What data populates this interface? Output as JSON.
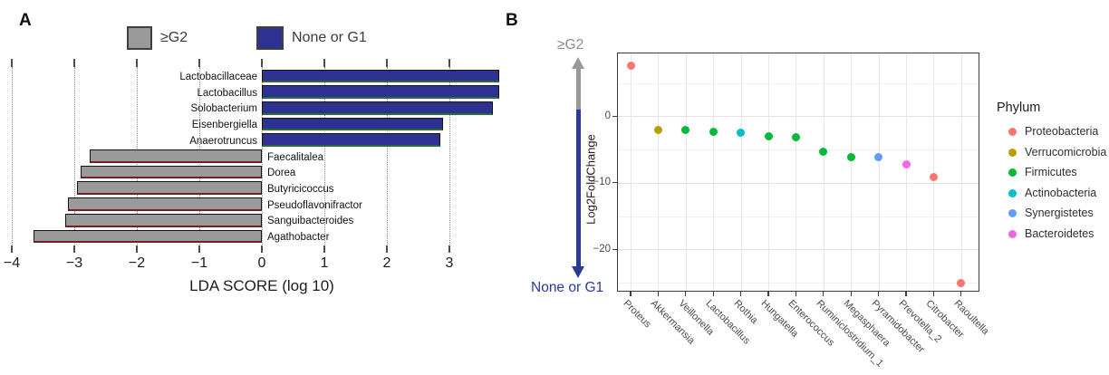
{
  "figure": {
    "panel_a_label": "A",
    "panel_b_label": "B"
  },
  "chart_data": [
    {
      "id": "lda_score",
      "type": "bar",
      "orientation": "horizontal",
      "xlabel": "LDA SCORE (log 10)",
      "xlim": [
        -4,
        4
      ],
      "xticks": [
        -4,
        -3,
        -2,
        -1,
        0,
        1,
        2,
        3
      ],
      "grid": "dotted-vertical",
      "legend_position": "top",
      "groups": [
        {
          "name": "≥G2",
          "fill": "#9a9a9a",
          "edge": "#141414",
          "bottom_edge": "#7b1d1d"
        },
        {
          "name": "None or G1",
          "fill": "#2e3192",
          "edge": "#141414",
          "bottom_edge": "#2a6b33"
        }
      ],
      "bars": [
        {
          "label": "Lactobacillaceae",
          "value": 3.8,
          "group": "None or G1"
        },
        {
          "label": "Lactobacillus",
          "value": 3.8,
          "group": "None or G1"
        },
        {
          "label": "Solobacterium",
          "value": 3.7,
          "group": "None or G1"
        },
        {
          "label": "Eisenbergiella",
          "value": 2.9,
          "group": "None or G1"
        },
        {
          "label": "Anaerotruncus",
          "value": 2.85,
          "group": "None or G1"
        },
        {
          "label": "Faecalitalea",
          "value": -2.75,
          "group": "≥G2"
        },
        {
          "label": "Dorea",
          "value": -2.9,
          "group": "≥G2"
        },
        {
          "label": "Butyricicoccus",
          "value": -2.95,
          "group": "≥G2"
        },
        {
          "label": "Pseudoflavonifractor",
          "value": -3.1,
          "group": "≥G2"
        },
        {
          "label": "Sanguibacteroides",
          "value": -3.15,
          "group": "≥G2"
        },
        {
          "label": "Agathobacter",
          "value": -3.65,
          "group": "≥G2"
        }
      ]
    },
    {
      "id": "log2foldchange",
      "type": "scatter",
      "ylabel": "Log2FoldChange",
      "ylim": [
        9.7,
        -26.8
      ],
      "yticks": [
        0,
        -10,
        -20
      ],
      "yticks_minor": [
        5,
        -5,
        -15,
        -25
      ],
      "grid": "light-gray",
      "top_axis_label": "≥G2",
      "bottom_axis_label": "None or G1",
      "arrow_up_color": "#999999",
      "arrow_down_color": "#2b3a94",
      "legend_title": "Phylum",
      "legend_position": "right",
      "phyla": [
        {
          "name": "Proteobacteria",
          "color": "#F8766D"
        },
        {
          "name": "Verrucomicrobia",
          "color": "#B79F00"
        },
        {
          "name": "Firmicutes",
          "color": "#00BA38"
        },
        {
          "name": "Actinobacteria",
          "color": "#00BFC4"
        },
        {
          "name": "Synergistetes",
          "color": "#619CFF"
        },
        {
          "name": "Bacteroidetes",
          "color": "#F564E2"
        }
      ],
      "points": [
        {
          "genus": "Proteus",
          "value": 7.6,
          "phylum": "Proteobacteria"
        },
        {
          "genus": "Akkermansia",
          "value": -2.0,
          "phylum": "Verrucomicrobia"
        },
        {
          "genus": "Veillonella",
          "value": -2.1,
          "phylum": "Firmicutes"
        },
        {
          "genus": "Lactobacillus",
          "value": -2.4,
          "phylum": "Firmicutes"
        },
        {
          "genus": "Rothia",
          "value": -2.5,
          "phylum": "Actinobacteria"
        },
        {
          "genus": "Hungatella",
          "value": -3.0,
          "phylum": "Firmicutes"
        },
        {
          "genus": "Enterococcus",
          "value": -3.2,
          "phylum": "Firmicutes"
        },
        {
          "genus": "Ruminiclostridium_1",
          "value": -5.4,
          "phylum": "Firmicutes"
        },
        {
          "genus": "Megasphaera",
          "value": -6.1,
          "phylum": "Firmicutes"
        },
        {
          "genus": "Pyramidobacter",
          "value": -6.2,
          "phylum": "Synergistetes"
        },
        {
          "genus": "Prevotella_2",
          "value": -7.2,
          "phylum": "Bacteroidetes"
        },
        {
          "genus": "Citrobacter",
          "value": -9.2,
          "phylum": "Proteobacteria"
        },
        {
          "genus": "Raoultella",
          "value": -25.0,
          "phylum": "Proteobacteria"
        }
      ]
    }
  ]
}
